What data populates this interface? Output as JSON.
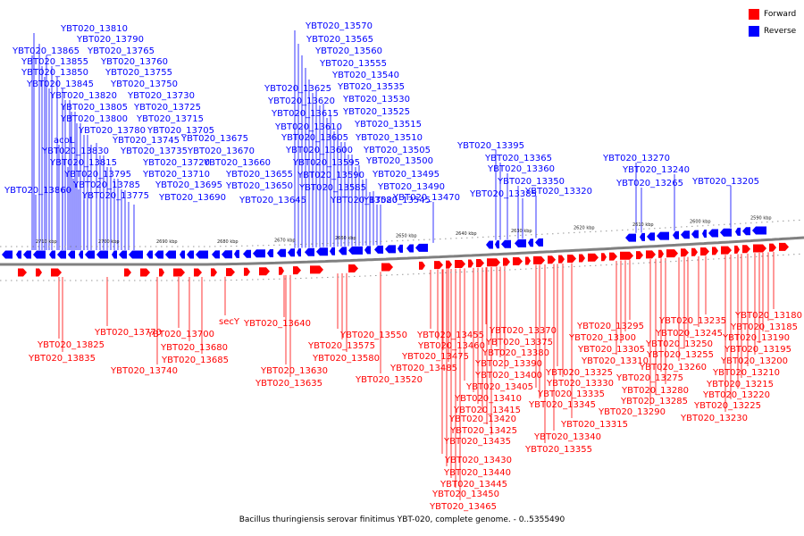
{
  "caption": "Bacillus thuringiensis serovar finitimus YBT-020, complete genome. - 0..5355490",
  "colors": {
    "forward": "#ff0000",
    "reverse": "#0000ff",
    "backbone": "#808080"
  },
  "legend": [
    {
      "label": "Forward",
      "color": "#ff0000"
    },
    {
      "label": "Reverse",
      "color": "#0000ff"
    }
  ],
  "ticks": [
    "2710 kbp",
    "2700 kbp",
    "2690 kbp",
    "2680 kbp",
    "2670 kbp",
    "2660 kbp",
    "2650 kbp",
    "2640 kbp",
    "2630 kbp",
    "2620 kbp",
    "2610 kbp",
    "2600 kbp",
    "2590 kbp"
  ],
  "reverse_labels": [
    "YBT020_13810",
    "YBT020_13790",
    "YBT020_13865",
    "YBT020_13765",
    "YBT020_13855",
    "YBT020_13760",
    "YBT020_13850",
    "YBT020_13755",
    "YBT020_13845",
    "YBT020_13750",
    "YBT020_13820",
    "YBT020_13730",
    "YBT020_13805",
    "YBT020_13725",
    "YBT020_13800",
    "YBT020_13715",
    "YBT020_13780",
    "YBT020_13705",
    "acoL",
    "YBT020_13745",
    "YBT020_13675",
    "YBT020_13830",
    "YBT020_13735",
    "YBT020_13670",
    "YBT020_13815",
    "YBT020_13720",
    "YBT020_13660",
    "YBT020_13795",
    "YBT020_13710",
    "YBT020_13655",
    "YBT020_13785",
    "YBT020_13695",
    "YBT020_13650",
    "YBT020_13860",
    "YBT020_13775",
    "YBT020_13690",
    "YBT020_13645",
    "YBT020_13570",
    "YBT020_13565",
    "YBT020_13560",
    "YBT020_13555",
    "YBT020_13540",
    "YBT020_13625",
    "YBT020_13535",
    "YBT020_13620",
    "YBT020_13530",
    "YBT020_13615",
    "YBT020_13525",
    "YBT020_13610",
    "YBT020_13515",
    "YBT020_13605",
    "YBT020_13510",
    "YBT020_13600",
    "YBT020_13505",
    "YBT020_13595",
    "YBT020_13500",
    "YBT020_13590",
    "YBT020_13495",
    "YBT020_13585",
    "YBT020_13490",
    "YBT020_13580",
    "YBT020_13545",
    "YBT020_13470",
    "YBT020_13395",
    "YBT020_13365",
    "YBT020_13360",
    "YBT020_13350",
    "YBT020_13385",
    "YBT020_13320",
    "YBT020_13270",
    "YBT020_13240",
    "YBT020_13265",
    "YBT020_13205"
  ],
  "forward_labels": [
    "YBT020_13770",
    "YBT020_13825",
    "YBT020_13835",
    "YBT020_13740",
    "YBT020_13700",
    "YBT020_13680",
    "YBT020_13685",
    "secY",
    "YBT020_13640",
    "YBT020_13630",
    "YBT020_13635",
    "YBT020_13550",
    "YBT020_13575",
    "YBT020_13580",
    "YBT020_13520",
    "YBT020_13455",
    "YBT020_13460",
    "YBT020_13475",
    "YBT020_13485",
    "YBT020_13370",
    "YBT020_13375",
    "YBT020_13380",
    "YBT020_13390",
    "YBT020_13400",
    "YBT020_13405",
    "YBT020_13410",
    "YBT020_13415",
    "YBT020_13420",
    "YBT020_13425",
    "YBT020_13435",
    "YBT020_13430",
    "YBT020_13440",
    "YBT020_13445",
    "YBT020_13450",
    "YBT020_13465",
    "YBT020_13295",
    "YBT020_13300",
    "YBT020_13305",
    "YBT020_13310",
    "YBT020_13325",
    "YBT020_13330",
    "YBT020_13335",
    "YBT020_13345",
    "YBT020_13315",
    "YBT020_13340",
    "YBT020_13355",
    "YBT020_13235",
    "YBT020_13245",
    "YBT020_13250",
    "YBT020_13255",
    "YBT020_13260",
    "YBT020_13275",
    "YBT020_13280",
    "YBT020_13285",
    "YBT020_13290",
    "YBT020_13180",
    "YBT020_13185",
    "YBT020_13190",
    "YBT020_13195",
    "YBT020_13200",
    "YBT020_13210",
    "YBT020_13215",
    "YBT020_13220",
    "YBT020_13225",
    "YBT020_13230"
  ]
}
